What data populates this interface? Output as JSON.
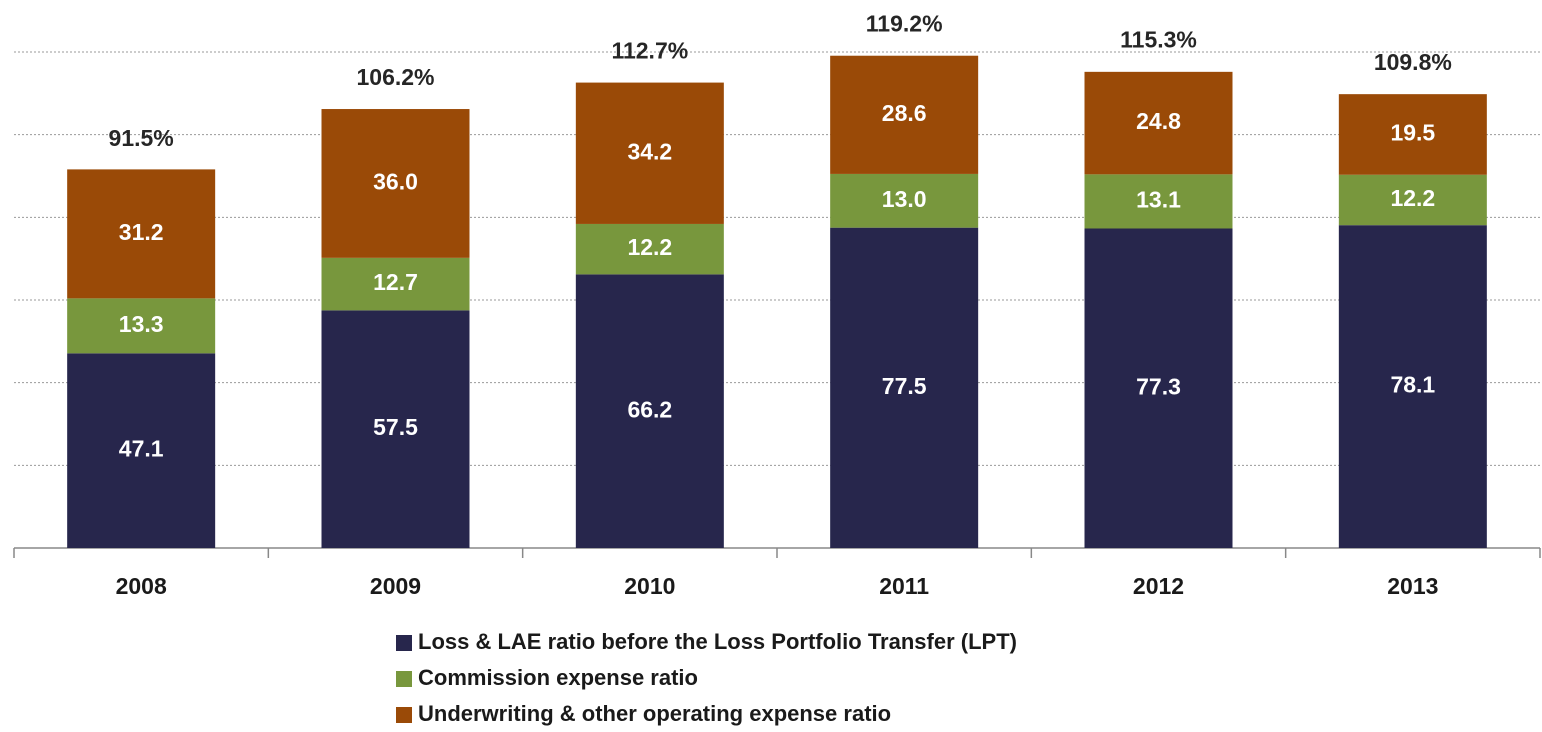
{
  "chart_data": {
    "type": "stacked_bar",
    "categories": [
      "2008",
      "2009",
      "2010",
      "2011",
      "2012",
      "2013"
    ],
    "series": [
      {
        "name": "Loss & LAE ratio before the Loss Portfolio Transfer (LPT)",
        "color": "#27264c",
        "values": [
          47.1,
          57.5,
          66.2,
          77.5,
          77.3,
          78.1
        ],
        "value_labels": [
          "47.1",
          "57.5",
          "66.2",
          "77.5",
          "77.3",
          "78.1"
        ]
      },
      {
        "name": "Commission expense ratio",
        "color": "#78973d",
        "values": [
          13.3,
          12.7,
          12.2,
          13.0,
          13.1,
          12.2
        ],
        "value_labels": [
          "13.3",
          "12.7",
          "12.2",
          "13.0",
          "13.1",
          "12.2"
        ]
      },
      {
        "name": "Underwriting & other operating expense ratio",
        "color": "#9a4a07",
        "values": [
          31.2,
          36.0,
          34.2,
          28.6,
          24.8,
          19.5
        ],
        "value_labels": [
          "31.2",
          "36.0",
          "34.2",
          "28.6",
          "24.8",
          "19.5"
        ]
      }
    ],
    "totals": {
      "values": [
        91.5,
        106.2,
        112.7,
        119.2,
        115.3,
        109.8
      ],
      "value_labels": [
        "91.5%",
        "106.2%",
        "112.7%",
        "119.2%",
        "115.3%",
        "109.8%"
      ]
    },
    "ylim": [
      0,
      120
    ],
    "yticks": [
      0,
      20,
      40,
      60,
      80,
      100,
      120
    ],
    "grid": true
  }
}
